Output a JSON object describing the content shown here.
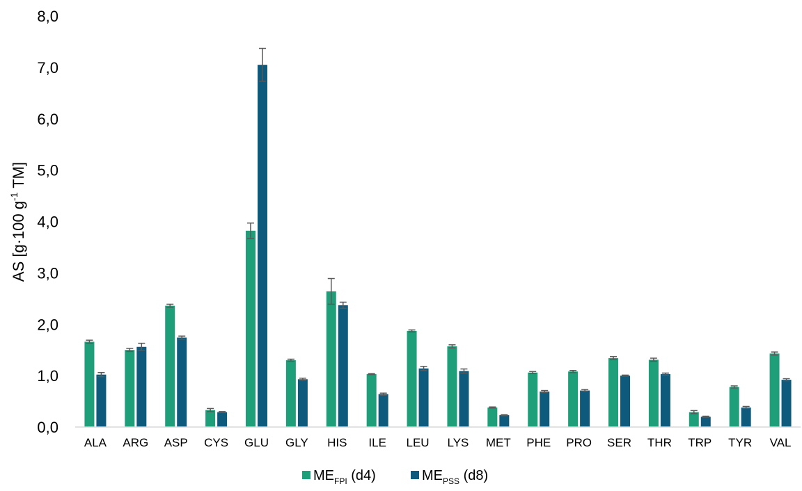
{
  "chart_data": {
    "type": "bar",
    "ylabel": {
      "prefix": "AS [g·100 g",
      "superscript": "-1",
      "suffix": " TM]"
    },
    "ylim": [
      0,
      8
    ],
    "yticks": [
      "0,0",
      "1,0",
      "2,0",
      "3,0",
      "4,0",
      "5,0",
      "6,0",
      "7,0",
      "8,0"
    ],
    "grid": false,
    "legend_position": "bottom",
    "categories": [
      "ALA",
      "ARG",
      "ASP",
      "CYS",
      "GLU",
      "GLY",
      "HIS",
      "ILE",
      "LEU",
      "LYS",
      "MET",
      "PHE",
      "PRO",
      "SER",
      "THR",
      "TRP",
      "TYR",
      "VAL"
    ],
    "series": [
      {
        "legend": {
          "main": "ME",
          "sub": "FPI",
          "suffix": " (d4)"
        },
        "color": "#1f9e7a",
        "values": [
          1.66,
          1.5,
          2.36,
          0.33,
          3.82,
          1.3,
          2.64,
          1.03,
          1.87,
          1.57,
          0.38,
          1.06,
          1.08,
          1.34,
          1.31,
          0.29,
          0.78,
          1.43
        ],
        "errors": [
          0.03,
          0.03,
          0.03,
          0.03,
          0.15,
          0.02,
          0.25,
          0.01,
          0.02,
          0.03,
          0.01,
          0.02,
          0.02,
          0.03,
          0.03,
          0.03,
          0.02,
          0.03
        ]
      },
      {
        "legend": {
          "main": "ME",
          "sub": "PSS",
          "suffix": " (d8)"
        },
        "color": "#0d5a7c",
        "values": [
          1.02,
          1.56,
          1.74,
          0.29,
          7.05,
          0.93,
          2.37,
          0.64,
          1.14,
          1.09,
          0.23,
          0.69,
          0.71,
          1.0,
          1.03,
          0.2,
          0.38,
          0.92
        ],
        "errors": [
          0.04,
          0.07,
          0.03,
          0.01,
          0.32,
          0.02,
          0.06,
          0.02,
          0.04,
          0.04,
          0.01,
          0.02,
          0.02,
          0.01,
          0.02,
          0.01,
          0.02,
          0.02
        ]
      }
    ],
    "axis_color": "#d9d9d9",
    "error_bar_color": "#595959"
  }
}
